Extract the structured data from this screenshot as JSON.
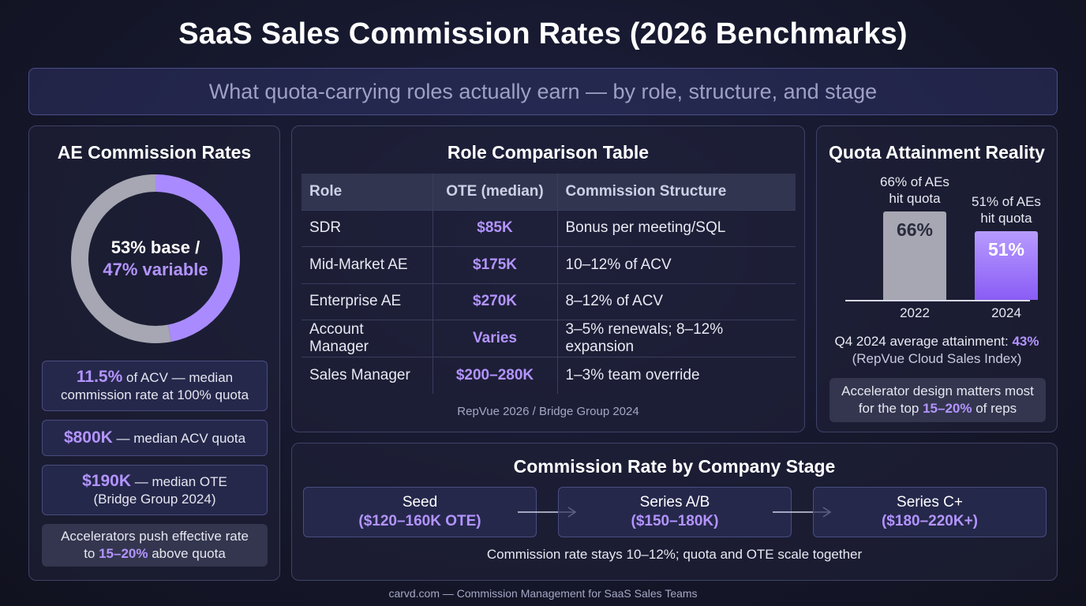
{
  "title": "SaaS Sales Commission Rates (2026 Benchmarks)",
  "subtitle": "What quota-carrying roles actually earn — by role, structure, and stage",
  "colors": {
    "accent": "#b394ff",
    "base_gray": "#a6a7b2",
    "background": "#15172b"
  },
  "ae_panel": {
    "title": "AE Commission Rates",
    "donut_line1": "53% base /",
    "donut_line2": "47% variable",
    "acv_rate_value": "11.5%",
    "acv_rate_text1": " of ACV — median",
    "acv_rate_text2": "commission rate at 100% quota",
    "quota_value": "$800K",
    "quota_text": " — median ACV quota",
    "ote_value": "$190K",
    "ote_text": " — median OTE",
    "ote_source": "(Bridge Group 2024)",
    "accel_line1": "Accelerators push effective rate",
    "accel_pre": "to ",
    "accel_value": "15–20%",
    "accel_post": " above quota"
  },
  "table_panel": {
    "title": "Role Comparison Table",
    "headers": [
      "Role",
      "OTE (median)",
      "Commission Structure"
    ],
    "rows": [
      {
        "role": "SDR",
        "ote": "$85K",
        "structure": "Bonus per meeting/SQL"
      },
      {
        "role": "Mid-Market AE",
        "ote": "$175K",
        "structure": "10–12% of ACV"
      },
      {
        "role": "Enterprise AE",
        "ote": "$270K",
        "structure": "8–12% of ACV"
      },
      {
        "role": "Account Manager",
        "ote": "Varies",
        "structure": "3–5% renewals; 8–12% expansion"
      },
      {
        "role": "Sales Manager",
        "ote": "$200–280K",
        "structure": "1–3% team override"
      }
    ],
    "source": "RepVue 2026 / Bridge Group 2024"
  },
  "quota_panel": {
    "title": "Quota Attainment Reality",
    "q4_text": "Q4 2024 average attainment: ",
    "q4_value": "43%",
    "q4_source": "(RepVue Cloud Sales Index)",
    "accel_line1": "Accelerator design matters most",
    "accel_pre": "for the top ",
    "accel_value": "15–20%",
    "accel_post": " of reps"
  },
  "stage_panel": {
    "title": "Commission Rate by Company Stage",
    "stages": [
      {
        "name": "Seed",
        "ote": "($120–160K OTE)"
      },
      {
        "name": "Series A/B",
        "ote": "($150–180K)"
      },
      {
        "name": "Series C+",
        "ote": "($180–220K+)"
      }
    ],
    "note": "Commission rate stays 10–12%; quota and OTE scale together"
  },
  "footer": "carvd.com — Commission Management for SaaS Sales Teams",
  "chart_data": [
    {
      "type": "pie",
      "variant": "donut",
      "categories": [
        "base",
        "variable"
      ],
      "values": [
        53,
        47
      ],
      "colors": [
        "#a6a7b2",
        "#a98bff"
      ],
      "labels": [
        "53% base /",
        "47% variable"
      ]
    },
    {
      "type": "bar",
      "categories": [
        "2022",
        "2024"
      ],
      "values": [
        66,
        51
      ],
      "value_labels": [
        "66%",
        "51%"
      ],
      "bar_captions": [
        "66% of AEs hit quota",
        "51% of AEs hit quota"
      ],
      "ylim": [
        0,
        100
      ],
      "colors": [
        "#a6a7b2",
        "#9a72ff"
      ],
      "grid": false
    }
  ]
}
